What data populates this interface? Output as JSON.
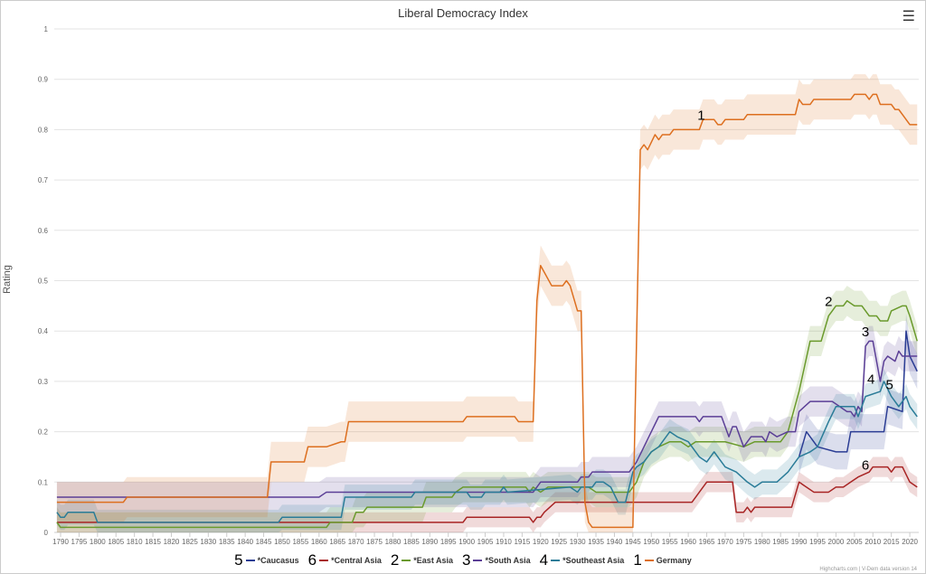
{
  "chart_data": {
    "type": "line",
    "title": "Liberal Democracy Index",
    "xlabel": "",
    "ylabel": "Rating",
    "xlim": [
      1789,
      2022
    ],
    "ylim": [
      0,
      1
    ],
    "yticks": [
      "0",
      "0.1",
      "0.2",
      "0.3",
      "0.4",
      "0.5",
      "0.6",
      "0.7",
      "0.8",
      "0.9",
      "1"
    ],
    "xticks": [
      1790,
      1795,
      1800,
      1805,
      1810,
      1815,
      1820,
      1825,
      1830,
      1835,
      1840,
      1845,
      1850,
      1855,
      1860,
      1865,
      1870,
      1875,
      1880,
      1885,
      1890,
      1895,
      1900,
      1905,
      1910,
      1915,
      1920,
      1925,
      1930,
      1935,
      1940,
      1945,
      1950,
      1955,
      1960,
      1965,
      1970,
      1975,
      1980,
      1985,
      1990,
      1995,
      2000,
      2005,
      2010,
      2015,
      2020
    ],
    "grid": true,
    "legend_position": "bottom",
    "series": [
      {
        "name": "*Caucasus",
        "label": "5",
        "color": "#2b3d94",
        "ci": 0.035,
        "label_at": [
          2014.5,
          0.285
        ],
        "points": [
          [
            1990,
            0.15
          ],
          [
            1992,
            0.2
          ],
          [
            1995,
            0.17
          ],
          [
            2000,
            0.16
          ],
          [
            2003,
            0.16
          ],
          [
            2004,
            0.2
          ],
          [
            2013,
            0.2
          ],
          [
            2014,
            0.25
          ],
          [
            2018,
            0.24
          ],
          [
            2019,
            0.4
          ],
          [
            2020,
            0.35
          ],
          [
            2022,
            0.32
          ]
        ]
      },
      {
        "name": "*Central Asia",
        "label": "6",
        "color": "#a82424",
        "ci": 0.02,
        "label_at": [
          2008,
          0.125
        ],
        "points": [
          [
            1789,
            0.02
          ],
          [
            1899,
            0.02
          ],
          [
            1900,
            0.03
          ],
          [
            1917,
            0.03
          ],
          [
            1918,
            0.02
          ],
          [
            1919,
            0.03
          ],
          [
            1920,
            0.03
          ],
          [
            1921,
            0.04
          ],
          [
            1924,
            0.06
          ],
          [
            1961,
            0.06
          ],
          [
            1965,
            0.1
          ],
          [
            1972,
            0.1
          ],
          [
            1973,
            0.04
          ],
          [
            1975,
            0.04
          ],
          [
            1976,
            0.05
          ],
          [
            1977,
            0.04
          ],
          [
            1978,
            0.05
          ],
          [
            1988,
            0.05
          ],
          [
            1990,
            0.1
          ],
          [
            1992,
            0.09
          ],
          [
            1994,
            0.08
          ],
          [
            1998,
            0.08
          ],
          [
            2000,
            0.09
          ],
          [
            2002,
            0.09
          ],
          [
            2004,
            0.1
          ],
          [
            2006,
            0.11
          ],
          [
            2009,
            0.12
          ],
          [
            2010,
            0.13
          ],
          [
            2014,
            0.13
          ],
          [
            2015,
            0.12
          ],
          [
            2016,
            0.13
          ],
          [
            2018,
            0.13
          ],
          [
            2020,
            0.1
          ],
          [
            2022,
            0.09
          ]
        ]
      },
      {
        "name": "*East Asia",
        "label": "2",
        "color": "#6a9a2c",
        "ci": 0.03,
        "label_at": [
          1998,
          0.45
        ],
        "points": [
          [
            1789,
            0.02
          ],
          [
            1790,
            0.01
          ],
          [
            1862,
            0.01
          ],
          [
            1863,
            0.02
          ],
          [
            1869,
            0.02
          ],
          [
            1870,
            0.04
          ],
          [
            1872,
            0.04
          ],
          [
            1873,
            0.05
          ],
          [
            1888,
            0.05
          ],
          [
            1889,
            0.07
          ],
          [
            1896,
            0.07
          ],
          [
            1897,
            0.08
          ],
          [
            1899,
            0.09
          ],
          [
            1916,
            0.09
          ],
          [
            1917,
            0.08
          ],
          [
            1918,
            0.09
          ],
          [
            1920,
            0.08
          ],
          [
            1922,
            0.09
          ],
          [
            1933,
            0.09
          ],
          [
            1935,
            0.08
          ],
          [
            1944,
            0.08
          ],
          [
            1946,
            0.1
          ],
          [
            1948,
            0.14
          ],
          [
            1950,
            0.16
          ],
          [
            1952,
            0.17
          ],
          [
            1955,
            0.18
          ],
          [
            1958,
            0.18
          ],
          [
            1960,
            0.17
          ],
          [
            1962,
            0.18
          ],
          [
            1970,
            0.18
          ],
          [
            1975,
            0.17
          ],
          [
            1978,
            0.18
          ],
          [
            1985,
            0.18
          ],
          [
            1987,
            0.2
          ],
          [
            1990,
            0.28
          ],
          [
            1993,
            0.38
          ],
          [
            1996,
            0.38
          ],
          [
            1998,
            0.43
          ],
          [
            1999,
            0.44
          ],
          [
            2000,
            0.45
          ],
          [
            2002,
            0.45
          ],
          [
            2003,
            0.46
          ],
          [
            2005,
            0.45
          ],
          [
            2007,
            0.45
          ],
          [
            2009,
            0.43
          ],
          [
            2011,
            0.43
          ],
          [
            2012,
            0.42
          ],
          [
            2014,
            0.42
          ],
          [
            2015,
            0.44
          ],
          [
            2018,
            0.45
          ],
          [
            2019,
            0.45
          ],
          [
            2020,
            0.43
          ],
          [
            2022,
            0.38
          ]
        ]
      },
      {
        "name": "*South Asia",
        "label": "3",
        "color": "#5b3f96",
        "ci": 0.03,
        "label_at": [
          2008,
          0.39
        ],
        "points": [
          [
            1789,
            0.07
          ],
          [
            1860,
            0.07
          ],
          [
            1862,
            0.08
          ],
          [
            1918,
            0.08
          ],
          [
            1920,
            0.1
          ],
          [
            1930,
            0.1
          ],
          [
            1931,
            0.11
          ],
          [
            1933,
            0.11
          ],
          [
            1934,
            0.12
          ],
          [
            1944,
            0.12
          ],
          [
            1946,
            0.14
          ],
          [
            1948,
            0.17
          ],
          [
            1950,
            0.2
          ],
          [
            1952,
            0.23
          ],
          [
            1962,
            0.23
          ],
          [
            1963,
            0.22
          ],
          [
            1964,
            0.23
          ],
          [
            1969,
            0.23
          ],
          [
            1971,
            0.19
          ],
          [
            1972,
            0.21
          ],
          [
            1973,
            0.21
          ],
          [
            1975,
            0.17
          ],
          [
            1977,
            0.19
          ],
          [
            1980,
            0.19
          ],
          [
            1981,
            0.18
          ],
          [
            1982,
            0.2
          ],
          [
            1984,
            0.19
          ],
          [
            1987,
            0.2
          ],
          [
            1989,
            0.2
          ],
          [
            1990,
            0.24
          ],
          [
            1993,
            0.26
          ],
          [
            1999,
            0.26
          ],
          [
            2003,
            0.24
          ],
          [
            2004,
            0.24
          ],
          [
            2005,
            0.23
          ],
          [
            2006,
            0.25
          ],
          [
            2007,
            0.24
          ],
          [
            2008,
            0.37
          ],
          [
            2009,
            0.38
          ],
          [
            2010,
            0.38
          ],
          [
            2012,
            0.3
          ],
          [
            2013,
            0.34
          ],
          [
            2014,
            0.35
          ],
          [
            2016,
            0.34
          ],
          [
            2017,
            0.36
          ],
          [
            2018,
            0.35
          ],
          [
            2022,
            0.35
          ]
        ]
      },
      {
        "name": "*Southeast Asia",
        "label": "4",
        "color": "#2a7c98",
        "ci": 0.025,
        "label_at": [
          2009.5,
          0.295
        ],
        "points": [
          [
            1789,
            0.04
          ],
          [
            1790,
            0.03
          ],
          [
            1791,
            0.03
          ],
          [
            1792,
            0.04
          ],
          [
            1799,
            0.04
          ],
          [
            1800,
            0.02
          ],
          [
            1849,
            0.02
          ],
          [
            1850,
            0.03
          ],
          [
            1866,
            0.03
          ],
          [
            1867,
            0.07
          ],
          [
            1885,
            0.07
          ],
          [
            1886,
            0.08
          ],
          [
            1900,
            0.08
          ],
          [
            1901,
            0.07
          ],
          [
            1904,
            0.07
          ],
          [
            1905,
            0.08
          ],
          [
            1909,
            0.08
          ],
          [
            1910,
            0.09
          ],
          [
            1911,
            0.08
          ],
          [
            1928,
            0.09
          ],
          [
            1930,
            0.08
          ],
          [
            1931,
            0.09
          ],
          [
            1934,
            0.09
          ],
          [
            1935,
            0.1
          ],
          [
            1937,
            0.1
          ],
          [
            1939,
            0.09
          ],
          [
            1941,
            0.06
          ],
          [
            1943,
            0.06
          ],
          [
            1945,
            0.12
          ],
          [
            1946,
            0.13
          ],
          [
            1948,
            0.14
          ],
          [
            1950,
            0.16
          ],
          [
            1952,
            0.17
          ],
          [
            1955,
            0.2
          ],
          [
            1957,
            0.19
          ],
          [
            1960,
            0.18
          ],
          [
            1963,
            0.15
          ],
          [
            1965,
            0.14
          ],
          [
            1967,
            0.16
          ],
          [
            1970,
            0.13
          ],
          [
            1973,
            0.12
          ],
          [
            1976,
            0.1
          ],
          [
            1978,
            0.09
          ],
          [
            1980,
            0.1
          ],
          [
            1984,
            0.1
          ],
          [
            1987,
            0.12
          ],
          [
            1990,
            0.15
          ],
          [
            1993,
            0.16
          ],
          [
            1995,
            0.17
          ],
          [
            1998,
            0.22
          ],
          [
            2000,
            0.25
          ],
          [
            2005,
            0.25
          ],
          [
            2006,
            0.23
          ],
          [
            2008,
            0.27
          ],
          [
            2012,
            0.28
          ],
          [
            2013,
            0.3
          ],
          [
            2015,
            0.27
          ],
          [
            2017,
            0.25
          ],
          [
            2019,
            0.27
          ],
          [
            2020,
            0.25
          ],
          [
            2022,
            0.23
          ]
        ]
      },
      {
        "name": "Germany",
        "label": "1",
        "color": "#dd6f1f",
        "ci": 0.04,
        "label_at": [
          1963.5,
          0.82
        ],
        "points": [
          [
            1789,
            0.06
          ],
          [
            1807,
            0.06
          ],
          [
            1808,
            0.07
          ],
          [
            1846,
            0.07
          ],
          [
            1847,
            0.14
          ],
          [
            1856,
            0.14
          ],
          [
            1857,
            0.17
          ],
          [
            1862,
            0.17
          ],
          [
            1866,
            0.18
          ],
          [
            1867,
            0.18
          ],
          [
            1868,
            0.22
          ],
          [
            1899,
            0.22
          ],
          [
            1900,
            0.23
          ],
          [
            1913,
            0.23
          ],
          [
            1914,
            0.22
          ],
          [
            1918,
            0.22
          ],
          [
            1919,
            0.46
          ],
          [
            1920,
            0.53
          ],
          [
            1923,
            0.49
          ],
          [
            1926,
            0.49
          ],
          [
            1927,
            0.5
          ],
          [
            1928,
            0.49
          ],
          [
            1930,
            0.44
          ],
          [
            1931,
            0.44
          ],
          [
            1932,
            0.06
          ],
          [
            1933,
            0.02
          ],
          [
            1934,
            0.01
          ],
          [
            1945,
            0.01
          ],
          [
            1947,
            0.76
          ],
          [
            1948,
            0.77
          ],
          [
            1949,
            0.76
          ],
          [
            1951,
            0.79
          ],
          [
            1952,
            0.78
          ],
          [
            1953,
            0.79
          ],
          [
            1955,
            0.79
          ],
          [
            1956,
            0.8
          ],
          [
            1963,
            0.8
          ],
          [
            1964,
            0.82
          ],
          [
            1967,
            0.82
          ],
          [
            1968,
            0.81
          ],
          [
            1969,
            0.81
          ],
          [
            1970,
            0.82
          ],
          [
            1975,
            0.82
          ],
          [
            1976,
            0.83
          ],
          [
            1989,
            0.83
          ],
          [
            1990,
            0.86
          ],
          [
            1991,
            0.85
          ],
          [
            1993,
            0.85
          ],
          [
            1994,
            0.86
          ],
          [
            2004,
            0.86
          ],
          [
            2005,
            0.87
          ],
          [
            2008,
            0.87
          ],
          [
            2009,
            0.86
          ],
          [
            2010,
            0.87
          ],
          [
            2011,
            0.87
          ],
          [
            2012,
            0.85
          ],
          [
            2015,
            0.85
          ],
          [
            2016,
            0.84
          ],
          [
            2017,
            0.84
          ],
          [
            2020,
            0.81
          ],
          [
            2022,
            0.81
          ]
        ]
      }
    ]
  },
  "menu_icon": "hamburger-menu-icon",
  "credits": "Highcharts.com | V-Dem data version 14"
}
